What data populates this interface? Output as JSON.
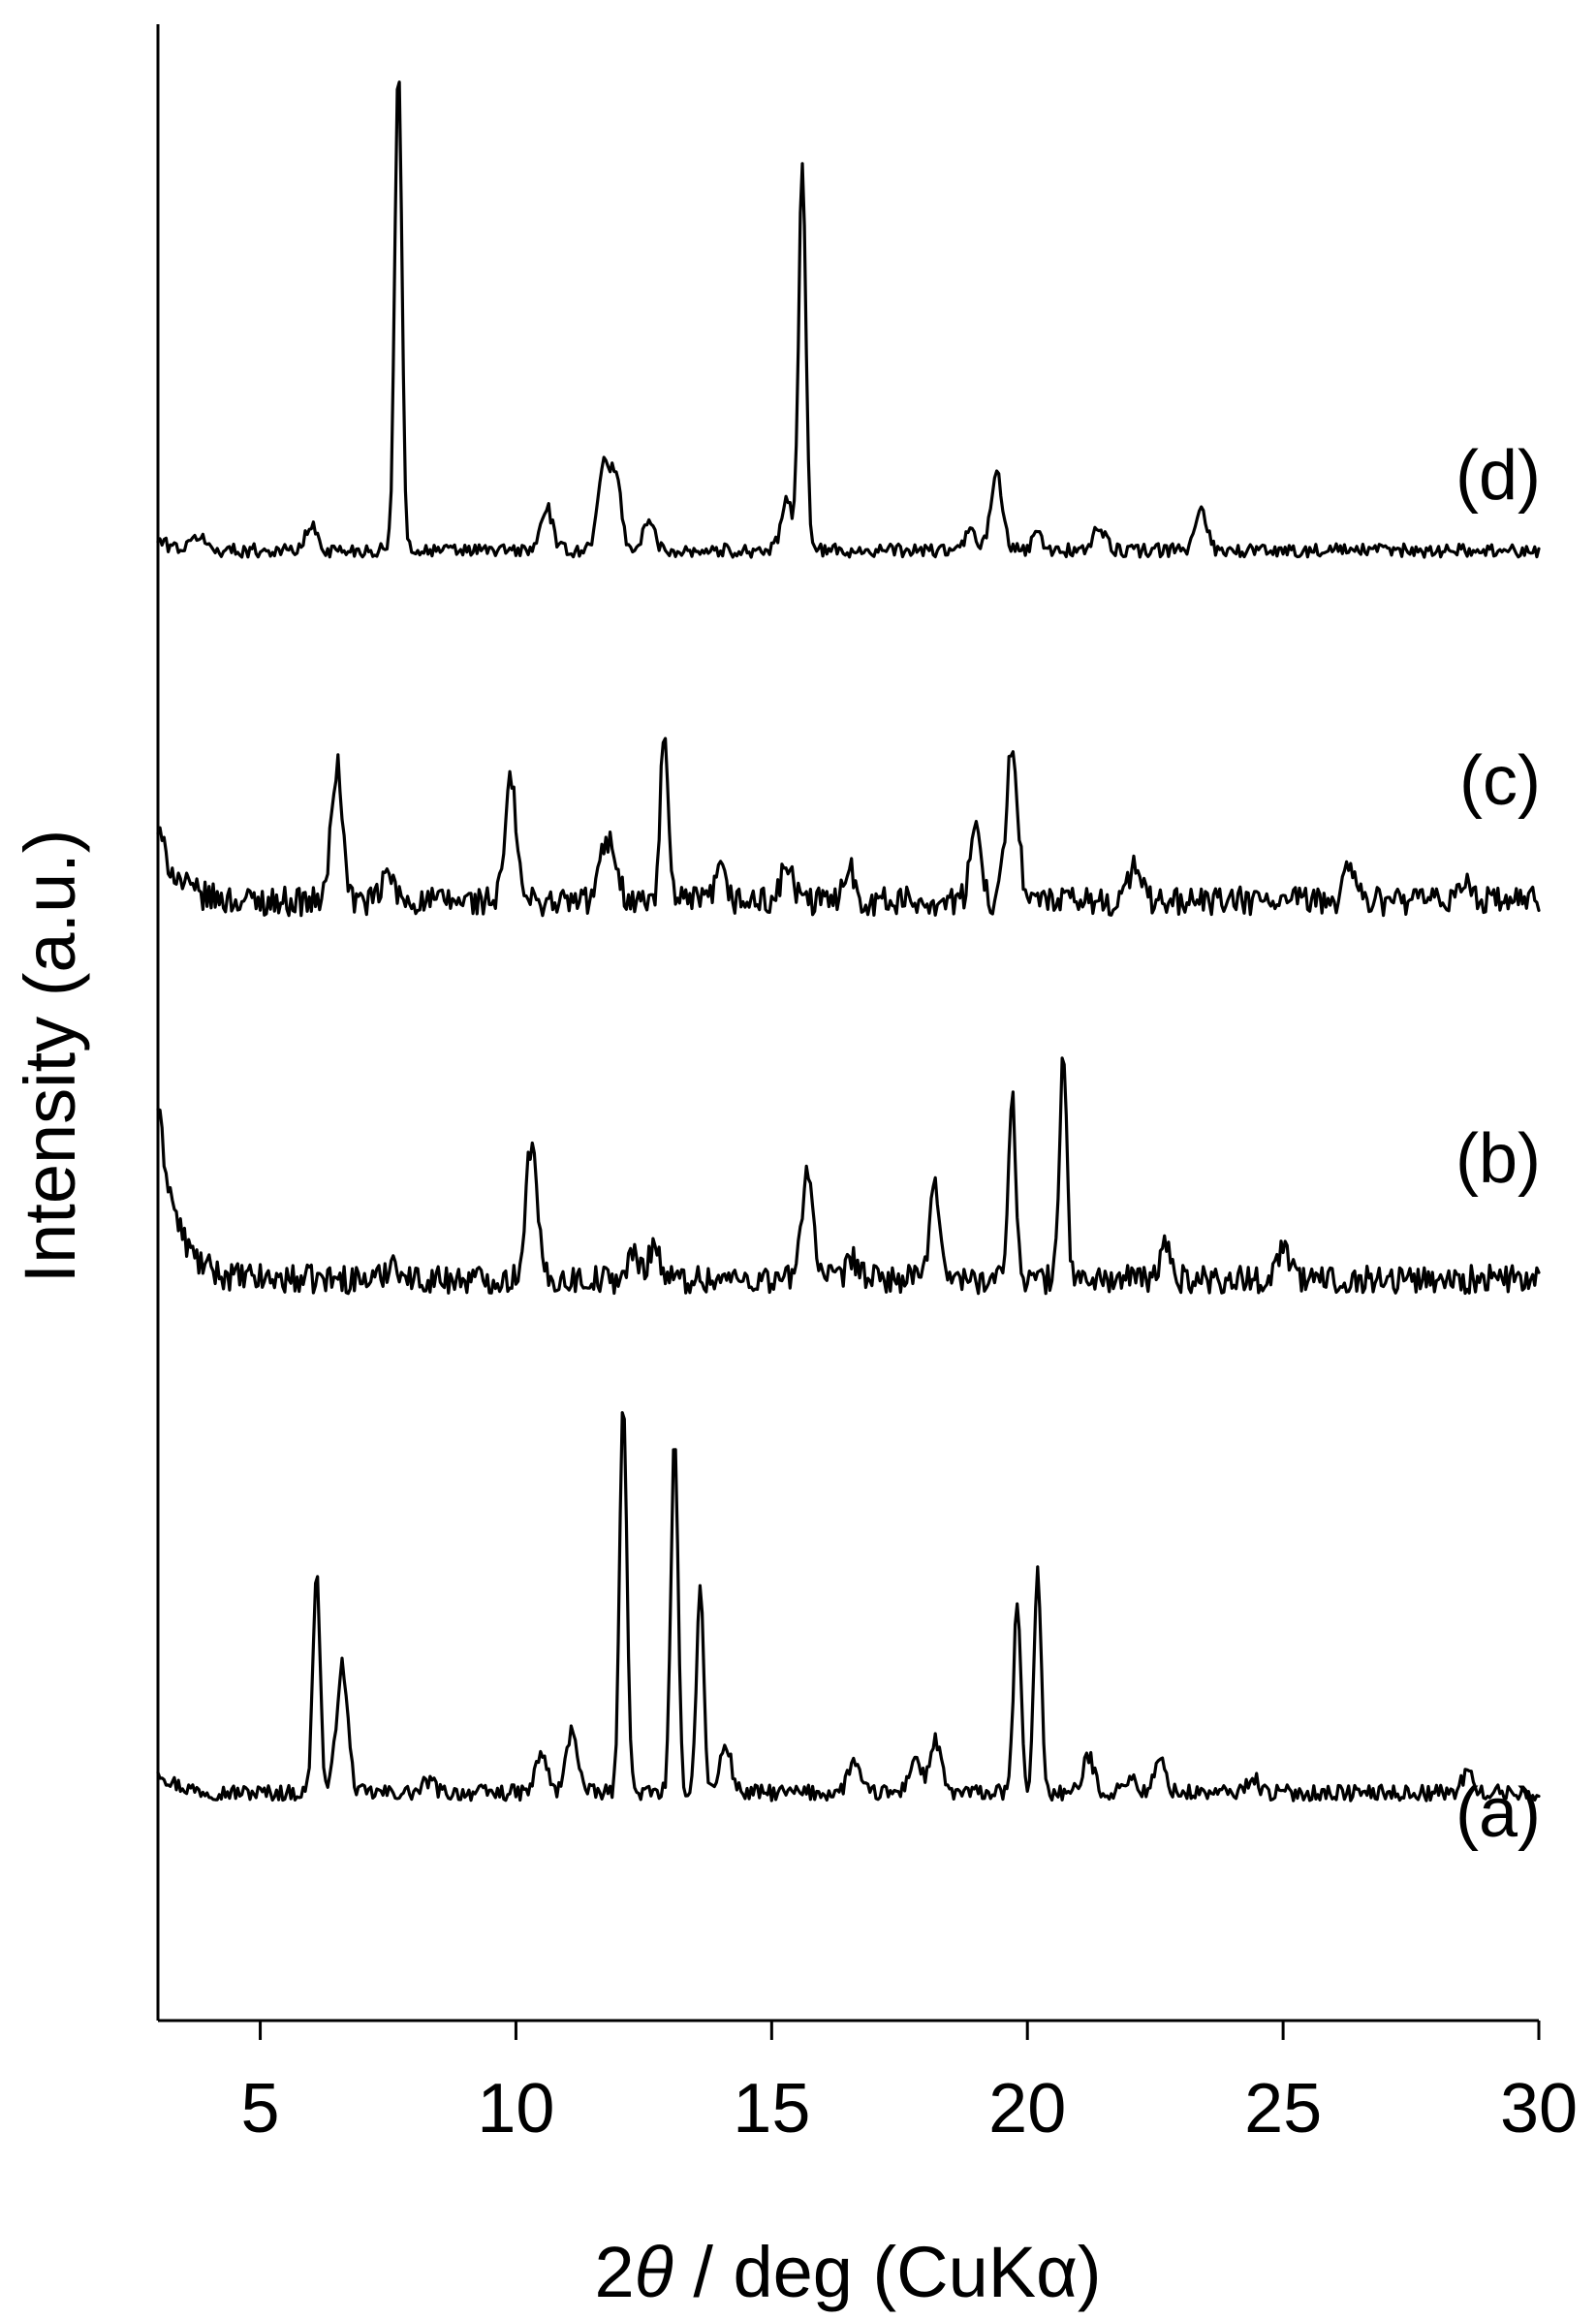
{
  "chart_data": {
    "type": "line",
    "title": "",
    "xlabel_prefix": "2",
    "xlabel_theta": "θ",
    "xlabel_rest": " / deg (CuKα)",
    "ylabel": "Intensity (a.u.)",
    "xlim": [
      3,
      30
    ],
    "xticks": [
      5,
      10,
      15,
      20,
      25,
      30
    ],
    "tick_labels": [
      "5",
      "10",
      "15",
      "20",
      "25",
      "30"
    ],
    "y_ticks_shown": false,
    "grid": false,
    "legend": "none",
    "series": [
      {
        "name": "(a)",
        "baseline": 0,
        "noise": 0.1,
        "peaks": [
          {
            "x": 6.1,
            "h": 2.8
          },
          {
            "x": 6.6,
            "h": 1.6
          },
          {
            "x": 8.3,
            "h": 0.15
          },
          {
            "x": 10.5,
            "h": 0.5
          },
          {
            "x": 11.1,
            "h": 0.8
          },
          {
            "x": 12.1,
            "h": 5.0
          },
          {
            "x": 13.1,
            "h": 4.4
          },
          {
            "x": 13.6,
            "h": 2.6
          },
          {
            "x": 14.1,
            "h": 0.6
          },
          {
            "x": 16.6,
            "h": 0.4
          },
          {
            "x": 17.8,
            "h": 0.45
          },
          {
            "x": 18.2,
            "h": 0.65
          },
          {
            "x": 19.8,
            "h": 2.4
          },
          {
            "x": 20.2,
            "h": 2.8
          },
          {
            "x": 21.2,
            "h": 0.45
          },
          {
            "x": 22.0,
            "h": 0.2
          },
          {
            "x": 22.6,
            "h": 0.4
          },
          {
            "x": 24.4,
            "h": 0.2
          },
          {
            "x": 28.6,
            "h": 0.25
          }
        ]
      },
      {
        "name": "(b)",
        "baseline": 0,
        "noise": 0.18,
        "peaks": [
          {
            "x": 7.6,
            "h": 0.25
          },
          {
            "x": 10.3,
            "h": 1.7
          },
          {
            "x": 12.3,
            "h": 0.3
          },
          {
            "x": 12.7,
            "h": 0.45
          },
          {
            "x": 15.7,
            "h": 1.4
          },
          {
            "x": 16.6,
            "h": 0.25
          },
          {
            "x": 18.2,
            "h": 1.1
          },
          {
            "x": 19.7,
            "h": 2.4
          },
          {
            "x": 20.7,
            "h": 2.9
          },
          {
            "x": 22.7,
            "h": 0.4
          },
          {
            "x": 25.0,
            "h": 0.45
          }
        ]
      },
      {
        "name": "(c)",
        "baseline": 0,
        "noise": 0.18,
        "peaks": [
          {
            "x": 6.5,
            "h": 1.7
          },
          {
            "x": 7.5,
            "h": 0.35
          },
          {
            "x": 9.9,
            "h": 1.5
          },
          {
            "x": 11.7,
            "h": 0.5
          },
          {
            "x": 11.9,
            "h": 0.6
          },
          {
            "x": 12.9,
            "h": 2.2
          },
          {
            "x": 14.0,
            "h": 0.35
          },
          {
            "x": 15.3,
            "h": 0.45
          },
          {
            "x": 16.5,
            "h": 0.45
          },
          {
            "x": 19.0,
            "h": 0.9
          },
          {
            "x": 19.7,
            "h": 2.0
          },
          {
            "x": 22.1,
            "h": 0.5
          },
          {
            "x": 26.3,
            "h": 0.5
          },
          {
            "x": 28.6,
            "h": 0.3
          }
        ]
      },
      {
        "name": "(d)",
        "baseline": 0,
        "noise": 0.07,
        "peaks": [
          {
            "x": 3.8,
            "h": 0.15
          },
          {
            "x": 6.0,
            "h": 0.25
          },
          {
            "x": 7.7,
            "h": 5.0
          },
          {
            "x": 10.6,
            "h": 0.45
          },
          {
            "x": 11.7,
            "h": 0.85
          },
          {
            "x": 11.95,
            "h": 0.75
          },
          {
            "x": 12.6,
            "h": 0.3
          },
          {
            "x": 15.3,
            "h": 0.5
          },
          {
            "x": 15.6,
            "h": 4.0
          },
          {
            "x": 18.9,
            "h": 0.2
          },
          {
            "x": 19.4,
            "h": 0.8
          },
          {
            "x": 20.2,
            "h": 0.15
          },
          {
            "x": 21.4,
            "h": 0.25
          },
          {
            "x": 23.4,
            "h": 0.45
          }
        ]
      }
    ]
  }
}
